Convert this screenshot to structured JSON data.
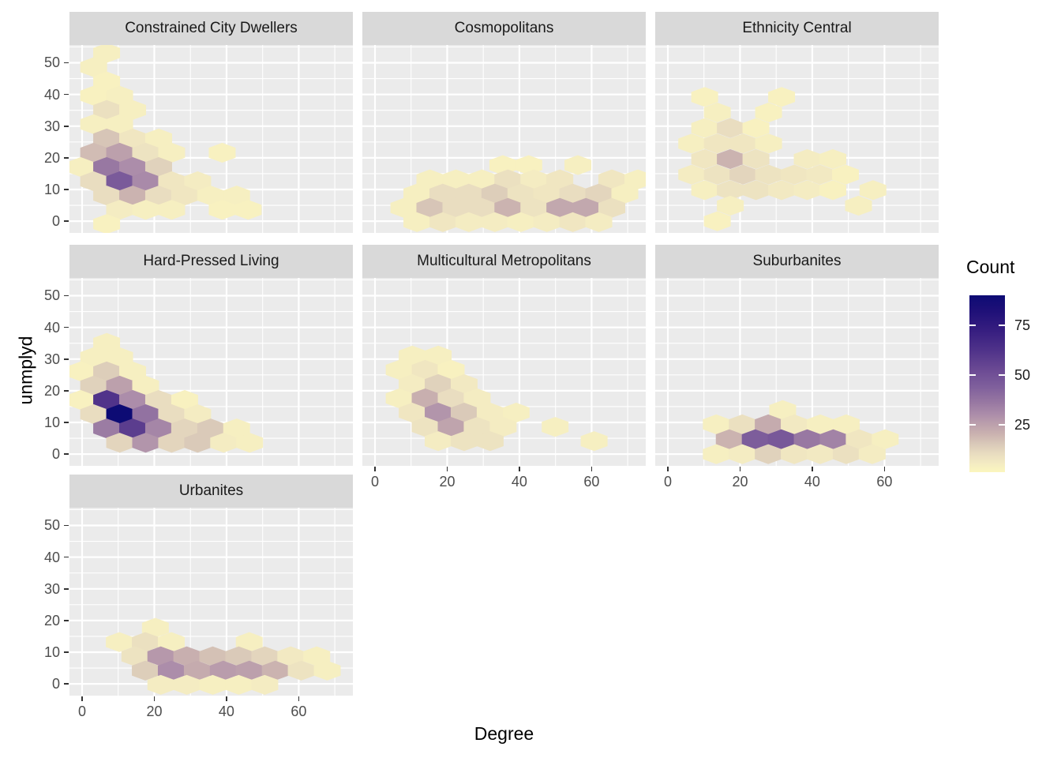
{
  "chart_data": {
    "type": "hexbin",
    "title": "",
    "xlabel": "Degree",
    "ylabel": "unmplyd",
    "x_major_ticks": [
      0,
      20,
      40,
      60
    ],
    "x_minor_ticks": [
      10,
      30,
      50,
      70
    ],
    "y_major_ticks": [
      0,
      10,
      20,
      30,
      40,
      50
    ],
    "y_minor_ticks": [
      5,
      15,
      25,
      35,
      45,
      55
    ],
    "x_domain": [
      -3.5,
      75.0
    ],
    "y_domain": [
      -3.7,
      55.6
    ],
    "grid": "on",
    "legend": {
      "title": "Count",
      "ticks": [
        25,
        50,
        75
      ],
      "min": 1,
      "max": 90,
      "position": "right"
    },
    "colors": {
      "panel_bg": "#EBEBEB",
      "strip_bg": "#D9D9D9",
      "grid": "#FFFFFF",
      "tick_text": "#4D4D4D",
      "axis_text": "#000000"
    },
    "color_scale_stops": [
      [
        1,
        "#FBF6BE"
      ],
      [
        5,
        "#F4ECC2"
      ],
      [
        10,
        "#E9DDC0"
      ],
      [
        15,
        "#DACAB9"
      ],
      [
        20,
        "#CBB3B0"
      ],
      [
        25,
        "#BCA0AC"
      ],
      [
        30,
        "#AC8DAA"
      ],
      [
        36,
        "#9878A2"
      ],
      [
        44,
        "#7F5F9C"
      ],
      [
        52,
        "#6C4B94"
      ],
      [
        62,
        "#50338A"
      ],
      [
        72,
        "#371E80"
      ],
      [
        82,
        "#1F1078"
      ],
      [
        90,
        "#0D0B74"
      ]
    ],
    "hex_width_units": 7.3,
    "hex_height_units": 6.1,
    "facets": [
      {
        "title": "Constrained City Dwellers",
        "row": 0,
        "col": 0,
        "axis_x": false,
        "axis_y": true,
        "hexes": [
          [
            6.8,
            53.1,
            4
          ],
          [
            3.2,
            48.6,
            4
          ],
          [
            6.8,
            44.1,
            3
          ],
          [
            3.2,
            39.6,
            3
          ],
          [
            10.4,
            39.6,
            4
          ],
          [
            6.8,
            35.1,
            9
          ],
          [
            14.0,
            35.1,
            4
          ],
          [
            3.2,
            30.6,
            4
          ],
          [
            10.4,
            30.6,
            4
          ],
          [
            6.8,
            26.1,
            16
          ],
          [
            14.0,
            26.1,
            7
          ],
          [
            21.2,
            26.1,
            4
          ],
          [
            3.2,
            21.6,
            18
          ],
          [
            10.4,
            21.6,
            25
          ],
          [
            17.6,
            21.6,
            8
          ],
          [
            24.8,
            21.6,
            4
          ],
          [
            38.8,
            21.6,
            3
          ],
          [
            -0.4,
            17.1,
            4
          ],
          [
            6.8,
            17.1,
            36
          ],
          [
            14.0,
            17.1,
            30
          ],
          [
            21.2,
            17.1,
            13
          ],
          [
            3.2,
            12.6,
            10
          ],
          [
            10.4,
            12.6,
            46
          ],
          [
            17.6,
            12.6,
            31
          ],
          [
            24.8,
            12.6,
            7
          ],
          [
            32.0,
            12.6,
            5
          ],
          [
            6.8,
            8.1,
            10
          ],
          [
            14.0,
            8.1,
            20
          ],
          [
            21.2,
            8.1,
            10
          ],
          [
            28.4,
            8.1,
            7
          ],
          [
            35.6,
            8.1,
            4
          ],
          [
            42.8,
            8.1,
            4
          ],
          [
            10.4,
            3.6,
            5
          ],
          [
            17.6,
            3.6,
            4
          ],
          [
            24.8,
            3.6,
            4
          ],
          [
            38.8,
            3.6,
            3
          ],
          [
            46.0,
            3.6,
            3
          ],
          [
            6.8,
            -0.9,
            3
          ]
        ]
      },
      {
        "title": "Cosmopolitans",
        "row": 0,
        "col": 1,
        "axis_x": false,
        "axis_y": false,
        "hexes": [
          [
            35.4,
            17.7,
            3
          ],
          [
            42.6,
            17.7,
            3
          ],
          [
            56.2,
            17.7,
            4
          ],
          [
            15.2,
            13.2,
            4
          ],
          [
            22.4,
            13.2,
            4
          ],
          [
            29.6,
            13.2,
            4
          ],
          [
            36.8,
            13.2,
            9
          ],
          [
            44.0,
            13.2,
            5
          ],
          [
            51.2,
            13.2,
            7
          ],
          [
            65.6,
            13.2,
            7
          ],
          [
            72.8,
            13.2,
            4
          ],
          [
            11.6,
            8.7,
            4
          ],
          [
            18.8,
            8.7,
            10
          ],
          [
            26.0,
            8.7,
            10
          ],
          [
            33.2,
            8.7,
            14
          ],
          [
            40.4,
            8.7,
            8
          ],
          [
            47.6,
            8.7,
            7
          ],
          [
            54.8,
            8.7,
            10
          ],
          [
            62.0,
            8.7,
            12
          ],
          [
            69.2,
            8.7,
            4
          ],
          [
            8.0,
            4.2,
            4
          ],
          [
            15.2,
            4.2,
            16
          ],
          [
            22.4,
            4.2,
            10
          ],
          [
            29.6,
            4.2,
            10
          ],
          [
            36.8,
            4.2,
            20
          ],
          [
            44.0,
            4.2,
            8
          ],
          [
            51.2,
            4.2,
            23
          ],
          [
            58.4,
            4.2,
            23
          ],
          [
            65.6,
            4.2,
            9
          ],
          [
            11.6,
            -0.3,
            4
          ],
          [
            18.8,
            -0.3,
            7
          ],
          [
            26.0,
            -0.3,
            5
          ],
          [
            33.2,
            -0.3,
            5
          ],
          [
            40.4,
            -0.3,
            4
          ],
          [
            47.6,
            -0.3,
            5
          ],
          [
            54.8,
            -0.3,
            7
          ],
          [
            62.0,
            -0.3,
            5
          ]
        ]
      },
      {
        "title": "Ethnicity Central",
        "row": 0,
        "col": 2,
        "axis_x": false,
        "axis_y": false,
        "hexes": [
          [
            10.2,
            39.2,
            3
          ],
          [
            31.5,
            39.2,
            3
          ],
          [
            13.7,
            34.3,
            4
          ],
          [
            27.9,
            34.3,
            3
          ],
          [
            10.2,
            29.4,
            4
          ],
          [
            17.3,
            29.4,
            10
          ],
          [
            24.4,
            29.4,
            3
          ],
          [
            6.6,
            24.5,
            4
          ],
          [
            13.7,
            24.5,
            7
          ],
          [
            20.8,
            24.5,
            7
          ],
          [
            27.9,
            24.5,
            4
          ],
          [
            10.2,
            19.6,
            7
          ],
          [
            17.3,
            19.6,
            20
          ],
          [
            24.4,
            19.6,
            8
          ],
          [
            38.6,
            19.6,
            5
          ],
          [
            45.7,
            19.6,
            4
          ],
          [
            6.6,
            14.7,
            5
          ],
          [
            13.7,
            14.7,
            8
          ],
          [
            20.8,
            14.7,
            12
          ],
          [
            27.9,
            14.7,
            8
          ],
          [
            35.0,
            14.7,
            7
          ],
          [
            42.1,
            14.7,
            6
          ],
          [
            49.2,
            14.7,
            3
          ],
          [
            10.2,
            9.8,
            4
          ],
          [
            17.3,
            9.8,
            8
          ],
          [
            24.4,
            9.8,
            8
          ],
          [
            31.5,
            9.8,
            6
          ],
          [
            38.6,
            9.8,
            5
          ],
          [
            45.7,
            9.8,
            3
          ],
          [
            56.8,
            9.8,
            4
          ],
          [
            17.3,
            4.9,
            4
          ],
          [
            52.8,
            4.9,
            4
          ],
          [
            13.7,
            0.0,
            3
          ]
        ]
      },
      {
        "title": "Hard-Pressed Living",
        "row": 1,
        "col": 0,
        "axis_x": false,
        "axis_y": true,
        "hexes": [
          [
            6.8,
            35.1,
            4
          ],
          [
            3.2,
            30.6,
            4
          ],
          [
            10.4,
            30.6,
            4
          ],
          [
            -0.4,
            26.1,
            3
          ],
          [
            6.8,
            26.1,
            14
          ],
          [
            14.0,
            26.1,
            4
          ],
          [
            3.2,
            21.6,
            13
          ],
          [
            10.4,
            21.6,
            25
          ],
          [
            17.6,
            21.6,
            4
          ],
          [
            -0.4,
            17.1,
            3
          ],
          [
            6.8,
            17.1,
            62
          ],
          [
            14.0,
            17.1,
            30
          ],
          [
            21.2,
            17.1,
            10
          ],
          [
            28.4,
            17.1,
            3
          ],
          [
            3.2,
            12.6,
            10
          ],
          [
            10.4,
            12.6,
            90
          ],
          [
            17.6,
            12.6,
            38
          ],
          [
            24.8,
            12.6,
            10
          ],
          [
            32.0,
            12.6,
            5
          ],
          [
            6.8,
            8.1,
            35
          ],
          [
            14.0,
            8.1,
            58
          ],
          [
            21.2,
            8.1,
            32
          ],
          [
            28.4,
            8.1,
            12
          ],
          [
            35.6,
            8.1,
            15
          ],
          [
            42.8,
            8.1,
            4
          ],
          [
            10.4,
            3.6,
            12
          ],
          [
            17.6,
            3.6,
            28
          ],
          [
            24.8,
            3.6,
            12
          ],
          [
            32.0,
            3.6,
            15
          ],
          [
            39.2,
            3.6,
            5
          ],
          [
            46.4,
            3.6,
            4
          ]
        ]
      },
      {
        "title": "Multicultural Metropolitans",
        "row": 1,
        "col": 1,
        "axis_x": true,
        "axis_y": false,
        "hexes": [
          [
            10.3,
            31.1,
            4
          ],
          [
            17.5,
            31.1,
            4
          ],
          [
            6.7,
            26.6,
            4
          ],
          [
            13.9,
            26.6,
            7
          ],
          [
            21.1,
            26.6,
            3
          ],
          [
            10.3,
            22.1,
            5
          ],
          [
            17.5,
            22.1,
            13
          ],
          [
            24.7,
            22.1,
            6
          ],
          [
            6.7,
            17.6,
            4
          ],
          [
            13.9,
            17.6,
            21
          ],
          [
            21.1,
            17.6,
            10
          ],
          [
            28.3,
            17.6,
            5
          ],
          [
            10.3,
            13.1,
            7
          ],
          [
            17.5,
            13.1,
            28
          ],
          [
            24.7,
            13.1,
            15
          ],
          [
            31.9,
            13.1,
            5
          ],
          [
            39.1,
            13.1,
            4
          ],
          [
            13.9,
            8.6,
            8
          ],
          [
            21.1,
            8.6,
            24
          ],
          [
            28.3,
            8.6,
            8
          ],
          [
            35.5,
            8.6,
            5
          ],
          [
            49.9,
            8.6,
            4
          ],
          [
            17.5,
            4.1,
            5
          ],
          [
            24.7,
            4.1,
            8
          ],
          [
            31.9,
            4.1,
            8
          ],
          [
            60.7,
            4.1,
            4
          ]
        ]
      },
      {
        "title": "Suburbanites",
        "row": 1,
        "col": 2,
        "axis_x": true,
        "axis_y": false,
        "hexes": [
          [
            31.8,
            13.9,
            4
          ],
          [
            13.4,
            9.4,
            4
          ],
          [
            20.6,
            9.4,
            9
          ],
          [
            27.8,
            9.4,
            22
          ],
          [
            35.0,
            9.4,
            6
          ],
          [
            42.2,
            9.4,
            4
          ],
          [
            49.4,
            9.4,
            4
          ],
          [
            17.0,
            4.7,
            20
          ],
          [
            24.2,
            4.7,
            45
          ],
          [
            31.4,
            4.7,
            47
          ],
          [
            38.6,
            4.7,
            36
          ],
          [
            45.8,
            4.7,
            33
          ],
          [
            53.0,
            4.7,
            7
          ],
          [
            60.2,
            4.7,
            4
          ],
          [
            13.4,
            0.0,
            4
          ],
          [
            20.6,
            0.0,
            5
          ],
          [
            27.8,
            0.0,
            13
          ],
          [
            35.0,
            0.0,
            7
          ],
          [
            42.2,
            0.0,
            6
          ],
          [
            49.4,
            0.0,
            9
          ],
          [
            56.6,
            0.0,
            5
          ]
        ]
      },
      {
        "title": "Urbanites",
        "row": 2,
        "col": 0,
        "axis_x": true,
        "axis_y": true,
        "hexes": [
          [
            20.3,
            17.7,
            4
          ],
          [
            10.3,
            13.2,
            4
          ],
          [
            17.5,
            13.2,
            9
          ],
          [
            24.7,
            13.2,
            4
          ],
          [
            46.3,
            13.2,
            4
          ],
          [
            14.6,
            8.7,
            8
          ],
          [
            21.8,
            8.7,
            27
          ],
          [
            29.0,
            8.7,
            21
          ],
          [
            36.2,
            8.7,
            17
          ],
          [
            43.4,
            8.7,
            15
          ],
          [
            50.6,
            8.7,
            12
          ],
          [
            57.8,
            8.7,
            6
          ],
          [
            65.0,
            8.7,
            4
          ],
          [
            17.5,
            4.2,
            14
          ],
          [
            24.7,
            4.2,
            30
          ],
          [
            31.9,
            4.2,
            22
          ],
          [
            39.1,
            4.2,
            26
          ],
          [
            46.3,
            4.2,
            25
          ],
          [
            53.5,
            4.2,
            20
          ],
          [
            60.7,
            4.2,
            8
          ],
          [
            67.9,
            4.2,
            4
          ],
          [
            21.8,
            -0.3,
            5
          ],
          [
            29.0,
            -0.3,
            5
          ],
          [
            36.2,
            -0.3,
            4
          ],
          [
            43.4,
            -0.3,
            4
          ],
          [
            50.6,
            -0.3,
            5
          ]
        ]
      }
    ]
  }
}
